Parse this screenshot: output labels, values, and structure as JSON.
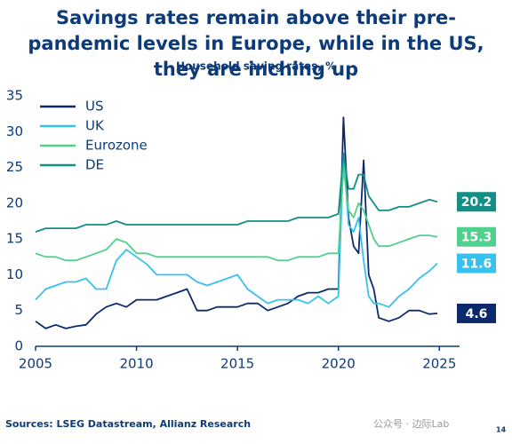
{
  "chart_data": {
    "type": "line",
    "title": "Savings rates remain above their pre-pandemic levels in Europe, while in the US, they are inching up",
    "subtitle": "Household saving rates, %",
    "source": "Sources: LSEG Datastream, Allianz Research",
    "watermark": "公众号 · 边际Lab",
    "page_number": "14",
    "x": [
      2005,
      2005.5,
      2006,
      2006.5,
      2007,
      2007.5,
      2008,
      2008.5,
      2009,
      2009.5,
      2010,
      2010.5,
      2011,
      2011.5,
      2012,
      2012.5,
      2013,
      2013.5,
      2014,
      2014.5,
      2015,
      2015.5,
      2016,
      2016.5,
      2017,
      2017.5,
      2018,
      2018.5,
      2019,
      2019.5,
      2020,
      2020.25,
      2020.5,
      2020.75,
      2021,
      2021.25,
      2021.5,
      2021.75,
      2022,
      2022.5,
      2023,
      2023.5,
      2024,
      2024.5,
      2024.9
    ],
    "xlim": [
      2005,
      2026
    ],
    "xticks": [
      2005,
      2010,
      2015,
      2020,
      2025
    ],
    "ylim": [
      0,
      35
    ],
    "yticks": [
      0,
      5,
      10,
      15,
      20,
      25,
      30,
      35
    ],
    "grid": false,
    "legend": "top-left",
    "series": [
      {
        "name": "US",
        "color": "#0b2a6b",
        "values": [
          3.5,
          2.5,
          3,
          2.5,
          2.8,
          3,
          4.5,
          5.5,
          6,
          5.5,
          6.5,
          6.5,
          6.5,
          7,
          7.5,
          8,
          5,
          5,
          5.5,
          5.5,
          5.5,
          6,
          6,
          5,
          5.5,
          6,
          7,
          7.5,
          7.5,
          8,
          8,
          32,
          18,
          14,
          13,
          26,
          10,
          8,
          4,
          3.5,
          4,
          5,
          5,
          4.5,
          4.6
        ]
      },
      {
        "name": "UK",
        "color": "#37c1ef",
        "values": [
          6.5,
          8,
          8.5,
          9,
          9,
          9.5,
          8,
          8,
          12,
          13.5,
          12.5,
          11.5,
          10,
          10,
          10,
          10,
          9,
          8.5,
          9,
          9.5,
          10,
          8,
          7,
          6,
          6.5,
          6.5,
          6.5,
          6,
          7,
          6,
          7,
          27,
          17,
          16,
          18,
          12,
          7,
          6,
          6,
          5.5,
          7,
          8,
          9.5,
          10.5,
          11.6
        ]
      },
      {
        "name": "Eurozone",
        "color": "#4fd18b",
        "values": [
          13,
          12.5,
          12.5,
          12,
          12,
          12.5,
          13,
          13.5,
          15,
          14.5,
          13,
          13,
          12.5,
          12.5,
          12.5,
          12.5,
          12.5,
          12.5,
          12.5,
          12.5,
          12.5,
          12.5,
          12.5,
          12.5,
          12,
          12,
          12.5,
          12.5,
          12.5,
          13,
          13,
          25,
          19,
          18,
          20,
          19,
          17,
          15,
          14,
          14,
          14.5,
          15,
          15.5,
          15.5,
          15.3
        ]
      },
      {
        "name": "DE",
        "color": "#138f86",
        "values": [
          16,
          16.5,
          16.5,
          16.5,
          16.5,
          17,
          17,
          17,
          17.5,
          17,
          17,
          17,
          17,
          17,
          17,
          17,
          17,
          17,
          17,
          17,
          17,
          17.5,
          17.5,
          17.5,
          17.5,
          17.5,
          18,
          18,
          18,
          18,
          18.5,
          27,
          22,
          22,
          24,
          24,
          21,
          20,
          19,
          19,
          19.5,
          19.5,
          20,
          20.5,
          20.2
        ]
      }
    ]
  }
}
